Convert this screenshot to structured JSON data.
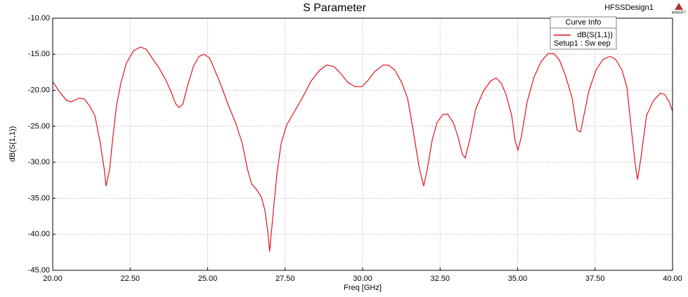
{
  "chart_data": {
    "type": "line",
    "title": "S Parameter",
    "design_name": "HFSSDesign1",
    "logo_text": "ANSOFT",
    "x_label": "Freq [GHz]",
    "y_label": "dB(S(1,1))",
    "legend_title": "Curve Info",
    "legend_position": "upper-right",
    "grid": true,
    "xlim": [
      20,
      40
    ],
    "ylim": [
      -45,
      -10
    ],
    "xticks": [
      {
        "value": 20,
        "label": "20.00"
      },
      {
        "value": 22.5,
        "label": "22.50"
      },
      {
        "value": 25,
        "label": "25.00"
      },
      {
        "value": 27.5,
        "label": "27.50"
      },
      {
        "value": 30,
        "label": "30.00"
      },
      {
        "value": 32.5,
        "label": "32.50"
      },
      {
        "value": 35,
        "label": "35.00"
      },
      {
        "value": 37.5,
        "label": "37.50"
      },
      {
        "value": 40,
        "label": "40.00"
      }
    ],
    "yticks": [
      {
        "value": -10,
        "label": "-10.00"
      },
      {
        "value": -15,
        "label": "-15.00"
      },
      {
        "value": -20,
        "label": "-20.00"
      },
      {
        "value": -25,
        "label": "-25.00"
      },
      {
        "value": -30,
        "label": "-30.00"
      },
      {
        "value": -35,
        "label": "-35.00"
      },
      {
        "value": -40,
        "label": "-40.00"
      },
      {
        "value": -45,
        "label": "-45.00"
      }
    ],
    "x": [
      20.0,
      20.23,
      20.45,
      20.6,
      20.84,
      21.02,
      21.18,
      21.36,
      21.52,
      21.66,
      21.72,
      21.84,
      21.93,
      22.06,
      22.2,
      22.38,
      22.61,
      22.83,
      23.02,
      23.17,
      23.4,
      23.63,
      23.81,
      23.97,
      24.08,
      24.2,
      24.35,
      24.54,
      24.72,
      24.88,
      25.06,
      25.22,
      25.44,
      25.67,
      25.9,
      26.12,
      26.28,
      26.42,
      26.58,
      26.73,
      26.85,
      26.94,
      27.0,
      27.1,
      27.23,
      27.37,
      27.55,
      27.78,
      28.05,
      28.34,
      28.62,
      28.84,
      29.07,
      29.3,
      29.52,
      29.75,
      29.98,
      30.16,
      30.39,
      30.66,
      30.84,
      31.04,
      31.27,
      31.45,
      31.63,
      31.81,
      31.97,
      32.09,
      32.24,
      32.4,
      32.58,
      32.74,
      32.93,
      33.08,
      33.22,
      33.31,
      33.45,
      33.65,
      33.9,
      34.13,
      34.31,
      34.47,
      34.63,
      34.81,
      34.92,
      35.01,
      35.12,
      35.31,
      35.53,
      35.76,
      35.99,
      36.17,
      36.35,
      36.55,
      36.76,
      36.92,
      37.03,
      37.14,
      37.3,
      37.53,
      37.76,
      37.98,
      38.16,
      38.37,
      38.53,
      38.66,
      38.8,
      38.87,
      38.98,
      39.16,
      39.39,
      39.61,
      39.75,
      39.89,
      40.0
    ],
    "series": [
      {
        "name": "dB(S(1,1))",
        "setup": "Setup1 : Sw eep",
        "color": "#e0141e",
        "values": [
          -18.8,
          -20.3,
          -21.4,
          -21.6,
          -21.1,
          -21.2,
          -22.1,
          -23.5,
          -27.0,
          -30.9,
          -33.3,
          -30.9,
          -27.0,
          -22.1,
          -19.0,
          -16.2,
          -14.5,
          -14.0,
          -14.3,
          -15.3,
          -16.7,
          -18.4,
          -20.1,
          -21.9,
          -22.4,
          -21.9,
          -19.4,
          -16.7,
          -15.3,
          -15.0,
          -15.5,
          -17.1,
          -19.4,
          -22.1,
          -24.5,
          -27.4,
          -30.9,
          -33.0,
          -33.8,
          -34.8,
          -36.7,
          -39.6,
          -42.4,
          -37.7,
          -31.8,
          -27.4,
          -24.8,
          -23.1,
          -21.1,
          -18.7,
          -17.2,
          -16.5,
          -16.7,
          -17.7,
          -18.9,
          -19.5,
          -19.5,
          -18.7,
          -17.4,
          -16.5,
          -16.5,
          -17.2,
          -19.0,
          -21.1,
          -25.5,
          -30.4,
          -33.3,
          -30.9,
          -27.0,
          -24.5,
          -23.4,
          -23.3,
          -24.5,
          -26.5,
          -28.9,
          -29.4,
          -27.0,
          -22.6,
          -20.1,
          -18.7,
          -18.3,
          -19.0,
          -20.6,
          -23.5,
          -27.0,
          -28.3,
          -26.5,
          -21.6,
          -18.2,
          -16.0,
          -14.9,
          -14.9,
          -15.8,
          -18.0,
          -21.1,
          -25.5,
          -25.8,
          -23.5,
          -20.1,
          -17.2,
          -15.7,
          -15.3,
          -15.7,
          -17.2,
          -19.6,
          -25.0,
          -30.4,
          -32.4,
          -29.4,
          -23.5,
          -21.4,
          -20.4,
          -20.6,
          -21.6,
          -22.9
        ]
      }
    ]
  }
}
